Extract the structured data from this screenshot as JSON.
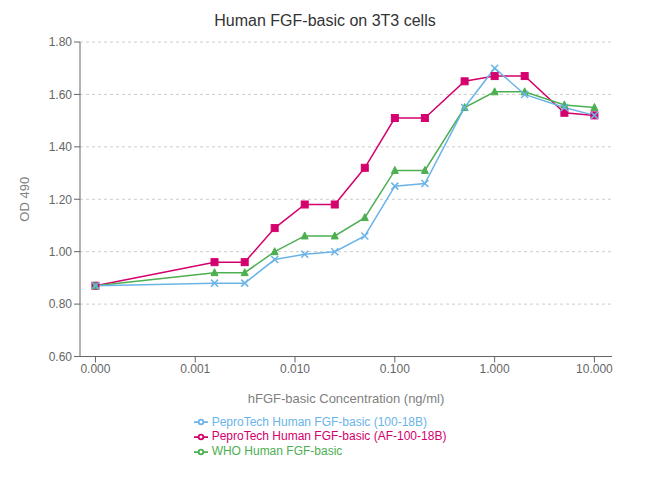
{
  "chart_data": {
    "type": "line",
    "title": "Human FGF-basic on 3T3 cells",
    "x_label": "hFGF-basic Concentration (ng/ml)",
    "y_label": "OD 490",
    "log": "x",
    "grid": "y",
    "legend": "bottom",
    "xlim": [
      7e-05,
      15.0
    ],
    "xticks": [
      {
        "value": 0.0001,
        "label": "0.000"
      },
      {
        "value": 0.001,
        "label": "0.001"
      },
      {
        "value": 0.01,
        "label": "0.010"
      },
      {
        "value": 0.1,
        "label": "0.100"
      },
      {
        "value": 1.0,
        "label": "1.000"
      },
      {
        "value": 10.0,
        "label": "10.000"
      }
    ],
    "ylim": [
      0.6,
      1.8
    ],
    "yticks": [
      {
        "value": 0.6,
        "label": "0.60"
      },
      {
        "value": 0.8,
        "label": "0.80"
      },
      {
        "value": 1.0,
        "label": "1.00"
      },
      {
        "value": 1.2,
        "label": "1.20"
      },
      {
        "value": 1.4,
        "label": "1.40"
      },
      {
        "value": 1.6,
        "label": "1.60"
      },
      {
        "value": 1.8,
        "label": "1.80"
      }
    ],
    "x": [
      0.0001,
      0.00156,
      0.00313,
      0.00625,
      0.0125,
      0.025,
      0.05,
      0.1,
      0.2,
      0.5,
      1.0,
      2.0,
      5.0,
      10.0
    ],
    "series": [
      {
        "name": "PeproTech Human FGF-basic (AF-100-18B)",
        "color": "#d4006e",
        "marker": "square",
        "values": [
          0.87,
          0.96,
          0.96,
          1.09,
          1.18,
          1.18,
          1.32,
          1.51,
          1.51,
          1.65,
          1.67,
          1.67,
          1.53,
          1.52
        ]
      },
      {
        "name": "WHO Human FGF-basic",
        "color": "#4caf50",
        "marker": "triangle",
        "values": [
          0.87,
          0.92,
          0.92,
          1.0,
          1.06,
          1.06,
          1.13,
          1.31,
          1.31,
          1.55,
          1.61,
          1.61,
          1.56,
          1.55
        ]
      },
      {
        "name": "PeproTech Human FGF-basic (100-18B)",
        "color": "#6ab4e8",
        "marker": "x",
        "values": [
          0.87,
          0.88,
          0.88,
          0.97,
          0.99,
          1.0,
          1.06,
          1.25,
          1.26,
          1.55,
          1.7,
          1.6,
          1.55,
          1.52
        ]
      }
    ]
  }
}
